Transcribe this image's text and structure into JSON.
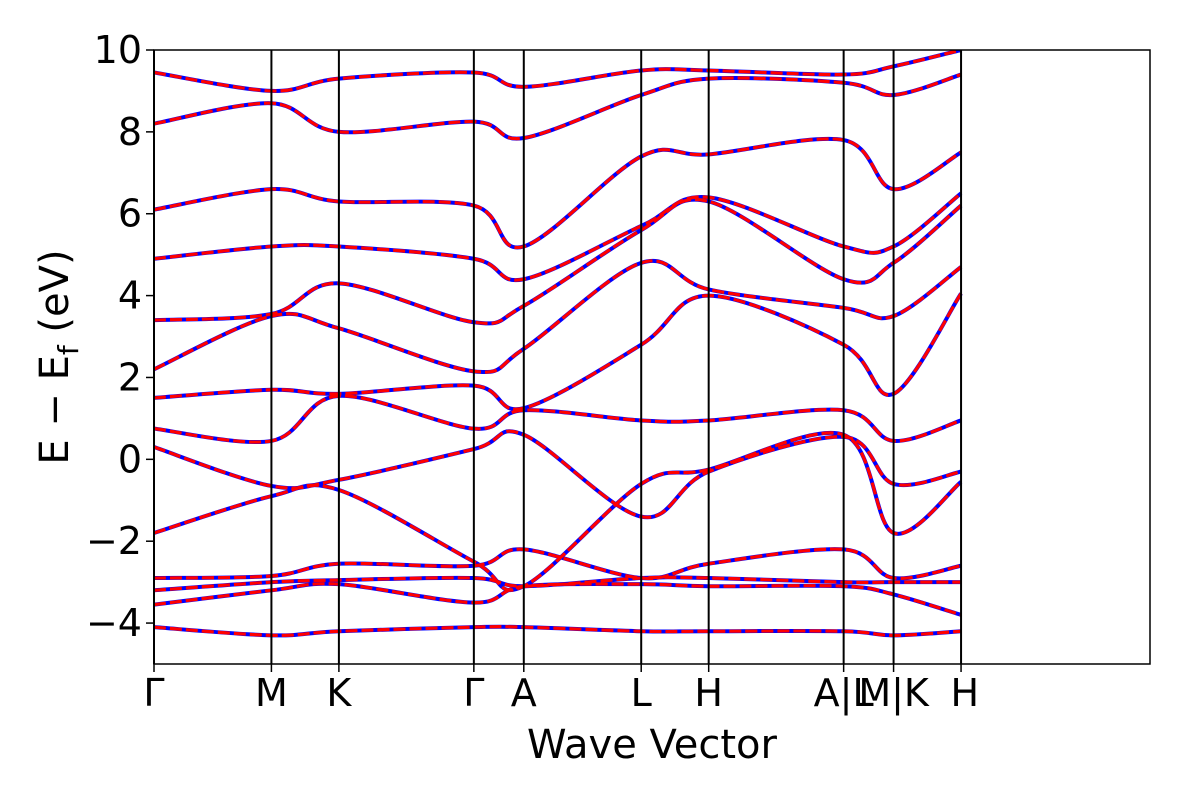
{
  "chart_data": {
    "type": "line",
    "title": "",
    "xlabel": "Wave Vector",
    "ylabel_parts": {
      "main": "E − E",
      "sub": "f",
      "unit": " (eV)"
    },
    "ylim": [
      -5,
      10
    ],
    "yticks": [
      {
        "value": -4,
        "label": "−4"
      },
      {
        "value": -2,
        "label": "−2"
      },
      {
        "value": 0,
        "label": "0"
      },
      {
        "value": 2,
        "label": "2"
      },
      {
        "value": 4,
        "label": "4"
      },
      {
        "value": 6,
        "label": "6"
      },
      {
        "value": 8,
        "label": "8"
      },
      {
        "value": 10,
        "label": "10"
      }
    ],
    "xlim": [
      0,
      14.76
    ],
    "kpoints": [
      {
        "pos": 0.0,
        "label": "Γ"
      },
      {
        "pos": 1.74,
        "label": "M"
      },
      {
        "pos": 2.74,
        "label": "K"
      },
      {
        "pos": 4.74,
        "label": "Γ"
      },
      {
        "pos": 5.48,
        "label": "A"
      },
      {
        "pos": 7.22,
        "label": "L"
      },
      {
        "pos": 8.22,
        "label": "H"
      },
      {
        "pos": 10.22,
        "label": "A|L"
      },
      {
        "pos": 10.96,
        "label": "M|K"
      },
      {
        "pos": 11.96,
        "label": "H"
      }
    ],
    "series": [
      {
        "color": "#0000ff",
        "style": "solid",
        "bands": [
          {
            "x": [
              0,
              1.74,
              2.74,
              4.74,
              5.48,
              7.22,
              8.22,
              10.22,
              10.96,
              11.96
            ],
            "y": [
              -4.1,
              -4.3,
              -4.2,
              -4.1,
              -4.1,
              -4.2,
              -4.2,
              -4.2,
              -4.3,
              -4.2
            ]
          },
          {
            "x": [
              0,
              1.74,
              2.74,
              4.74,
              5.48,
              7.22,
              8.22,
              10.22,
              10.96,
              11.96
            ],
            "y": [
              -3.55,
              -3.2,
              -3.05,
              -3.5,
              -3.1,
              -3.05,
              -3.1,
              -3.1,
              -3.3,
              -3.8
            ]
          },
          {
            "x": [
              0,
              1.74,
              2.74,
              4.74,
              5.48,
              7.22,
              8.22,
              10.22,
              10.96,
              11.96
            ],
            "y": [
              -3.2,
              -3.0,
              -2.95,
              -2.9,
              -3.1,
              -2.9,
              -2.9,
              -3.0,
              -3.0,
              -3.0
            ]
          },
          {
            "x": [
              0,
              1.74,
              2.74,
              4.74,
              5.48,
              7.22,
              8.22,
              10.22,
              10.96,
              11.96
            ],
            "y": [
              -2.9,
              -2.85,
              -2.55,
              -2.6,
              -2.2,
              -2.9,
              -2.55,
              -2.2,
              -2.9,
              -2.6
            ]
          },
          {
            "x": [
              0,
              1.74,
              2.74,
              4.74,
              5.48,
              7.22,
              8.22,
              10.22,
              10.96,
              11.96
            ],
            "y": [
              -1.8,
              -0.9,
              -0.75,
              -2.5,
              -3.1,
              -0.6,
              -0.25,
              0.6,
              -1.8,
              -0.55
            ]
          },
          {
            "x": [
              0,
              1.74,
              2.74,
              4.74,
              5.48,
              7.22,
              8.22,
              10.22,
              10.96,
              11.96
            ],
            "y": [
              0.3,
              -0.65,
              -0.5,
              0.25,
              0.6,
              -1.4,
              -0.3,
              0.55,
              -0.6,
              -0.3
            ]
          },
          {
            "x": [
              0,
              1.74,
              2.74,
              4.74,
              5.48,
              7.22,
              8.22,
              10.22,
              10.96,
              11.96
            ],
            "y": [
              0.75,
              0.45,
              1.55,
              0.75,
              1.2,
              0.95,
              0.95,
              1.2,
              0.45,
              0.95
            ]
          },
          {
            "x": [
              0,
              1.74,
              2.74,
              4.74,
              5.48,
              7.22,
              8.22,
              10.22,
              10.96,
              11.96
            ],
            "y": [
              1.5,
              1.7,
              1.6,
              1.8,
              1.25,
              2.8,
              4.0,
              2.8,
              1.6,
              4.05
            ]
          },
          {
            "x": [
              0,
              1.74,
              2.74,
              4.74,
              5.48,
              7.22,
              8.22,
              10.22,
              10.96,
              11.96
            ],
            "y": [
              2.2,
              3.5,
              3.2,
              2.15,
              2.7,
              4.8,
              4.15,
              3.7,
              3.5,
              4.7
            ]
          },
          {
            "x": [
              0,
              1.74,
              2.74,
              4.74,
              5.48,
              7.22,
              8.22,
              10.22,
              10.96,
              11.96
            ],
            "y": [
              3.4,
              3.55,
              4.3,
              3.35,
              3.75,
              5.6,
              6.3,
              4.4,
              4.8,
              6.2
            ]
          },
          {
            "x": [
              0,
              1.74,
              2.74,
              4.74,
              5.48,
              7.22,
              8.22,
              10.22,
              10.96,
              11.96
            ],
            "y": [
              4.9,
              5.2,
              5.2,
              4.9,
              4.4,
              5.7,
              6.4,
              5.2,
              5.2,
              6.5
            ]
          },
          {
            "x": [
              0,
              1.74,
              2.74,
              4.74,
              5.48,
              7.22,
              8.22,
              10.22,
              10.96,
              11.96
            ],
            "y": [
              6.1,
              6.6,
              6.3,
              6.2,
              5.2,
              7.4,
              7.45,
              7.8,
              6.6,
              7.5
            ]
          },
          {
            "x": [
              0,
              1.74,
              2.74,
              4.74,
              5.48,
              7.22,
              8.22,
              10.22,
              10.96,
              11.96
            ],
            "y": [
              8.2,
              8.7,
              8.0,
              8.25,
              7.85,
              8.9,
              9.3,
              9.2,
              8.9,
              9.4
            ]
          },
          {
            "x": [
              0,
              1.74,
              2.74,
              4.74,
              5.48,
              7.22,
              8.22,
              10.22,
              10.96,
              11.96
            ],
            "y": [
              9.45,
              9.0,
              9.3,
              9.45,
              9.1,
              9.5,
              9.5,
              9.4,
              9.6,
              10.0
            ]
          }
        ]
      },
      {
        "color": "#ff0000",
        "style": "dashed",
        "bands": [
          {
            "x": [
              0,
              1.74,
              2.74,
              4.74,
              5.48,
              7.22,
              8.22,
              10.22,
              10.96,
              11.96
            ],
            "y": [
              -4.1,
              -4.3,
              -4.2,
              -4.1,
              -4.1,
              -4.2,
              -4.2,
              -4.2,
              -4.3,
              -4.2
            ]
          },
          {
            "x": [
              0,
              1.74,
              2.74,
              4.74,
              5.48,
              7.22,
              8.22,
              10.22,
              10.96,
              11.96
            ],
            "y": [
              -3.55,
              -3.2,
              -3.05,
              -3.5,
              -3.1,
              -3.05,
              -3.1,
              -3.1,
              -3.3,
              -3.8
            ]
          },
          {
            "x": [
              0,
              1.74,
              2.74,
              4.74,
              5.48,
              7.22,
              8.22,
              10.22,
              10.96,
              11.96
            ],
            "y": [
              -3.2,
              -3.0,
              -2.95,
              -2.9,
              -3.1,
              -2.9,
              -2.9,
              -3.0,
              -3.0,
              -3.0
            ]
          },
          {
            "x": [
              0,
              1.74,
              2.74,
              4.74,
              5.48,
              7.22,
              8.22,
              10.22,
              10.96,
              11.96
            ],
            "y": [
              -2.9,
              -2.85,
              -2.55,
              -2.6,
              -2.2,
              -2.9,
              -2.55,
              -2.2,
              -2.9,
              -2.6
            ]
          },
          {
            "x": [
              0,
              1.74,
              2.74,
              4.74,
              5.48,
              7.22,
              8.22,
              10.22,
              10.96,
              11.96
            ],
            "y": [
              -1.8,
              -0.9,
              -0.75,
              -2.5,
              -3.1,
              -0.6,
              -0.25,
              0.6,
              -1.8,
              -0.55
            ]
          },
          {
            "x": [
              0,
              1.74,
              2.74,
              4.74,
              5.48,
              7.22,
              8.22,
              10.22,
              10.96,
              11.96
            ],
            "y": [
              0.3,
              -0.65,
              -0.5,
              0.25,
              0.6,
              -1.4,
              -0.3,
              0.55,
              -0.6,
              -0.3
            ]
          },
          {
            "x": [
              0,
              1.74,
              2.74,
              4.74,
              5.48,
              7.22,
              8.22,
              10.22,
              10.96,
              11.96
            ],
            "y": [
              0.75,
              0.45,
              1.55,
              0.75,
              1.2,
              0.95,
              0.95,
              1.2,
              0.45,
              0.95
            ]
          },
          {
            "x": [
              0,
              1.74,
              2.74,
              4.74,
              5.48,
              7.22,
              8.22,
              10.22,
              10.96,
              11.96
            ],
            "y": [
              1.5,
              1.7,
              1.6,
              1.8,
              1.25,
              2.8,
              4.0,
              2.8,
              1.6,
              4.05
            ]
          },
          {
            "x": [
              0,
              1.74,
              2.74,
              4.74,
              5.48,
              7.22,
              8.22,
              10.22,
              10.96,
              11.96
            ],
            "y": [
              2.2,
              3.5,
              3.2,
              2.15,
              2.7,
              4.8,
              4.15,
              3.7,
              3.5,
              4.7
            ]
          },
          {
            "x": [
              0,
              1.74,
              2.74,
              4.74,
              5.48,
              7.22,
              8.22,
              10.22,
              10.96,
              11.96
            ],
            "y": [
              3.4,
              3.55,
              4.3,
              3.35,
              3.75,
              5.6,
              6.3,
              4.4,
              4.8,
              6.2
            ]
          },
          {
            "x": [
              0,
              1.74,
              2.74,
              4.74,
              5.48,
              7.22,
              8.22,
              10.22,
              10.96,
              11.96
            ],
            "y": [
              4.9,
              5.2,
              5.2,
              4.9,
              4.4,
              5.7,
              6.4,
              5.2,
              5.2,
              6.5
            ]
          },
          {
            "x": [
              0,
              1.74,
              2.74,
              4.74,
              5.48,
              7.22,
              8.22,
              10.22,
              10.96,
              11.96
            ],
            "y": [
              6.1,
              6.6,
              6.3,
              6.2,
              5.2,
              7.4,
              7.45,
              7.8,
              6.6,
              7.5
            ]
          },
          {
            "x": [
              0,
              1.74,
              2.74,
              4.74,
              5.48,
              7.22,
              8.22,
              10.22,
              10.96,
              11.96
            ],
            "y": [
              8.2,
              8.7,
              8.0,
              8.25,
              7.85,
              8.9,
              9.3,
              9.2,
              8.9,
              9.4
            ]
          },
          {
            "x": [
              0,
              1.74,
              2.74,
              4.74,
              5.48,
              7.22,
              8.22,
              10.22,
              10.96,
              11.96
            ],
            "y": [
              9.45,
              9.0,
              9.3,
              9.45,
              9.1,
              9.5,
              9.5,
              9.4,
              9.6,
              10.0
            ]
          }
        ]
      }
    ]
  }
}
